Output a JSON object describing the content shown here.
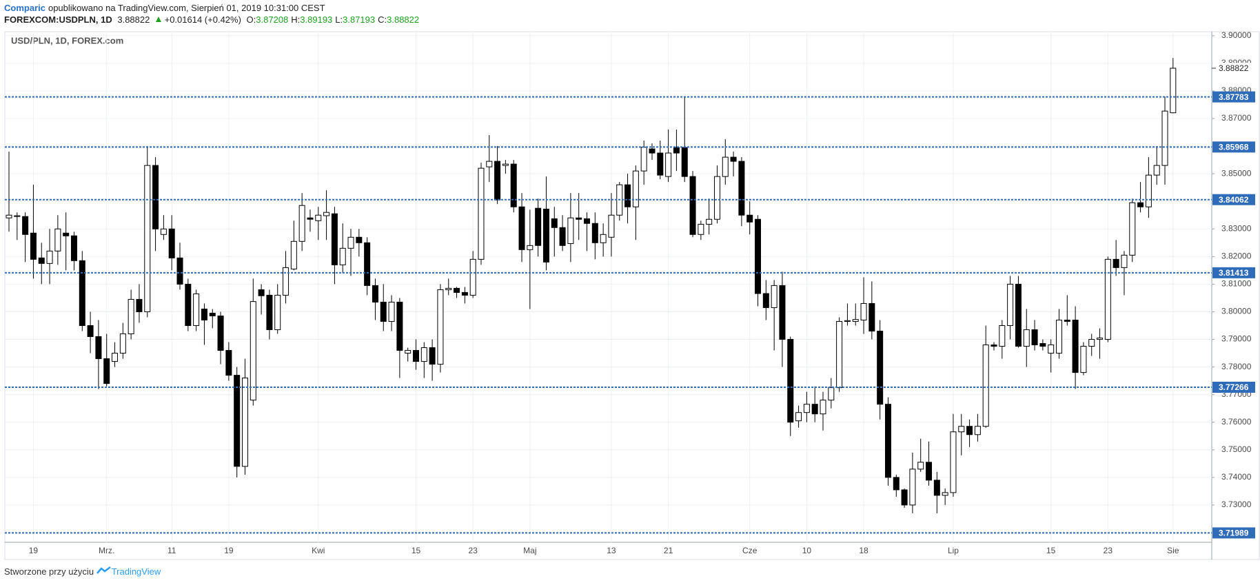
{
  "header": {
    "author": "Comparic",
    "published": "opublikowano na TradingView.com, Sierpień 01, 2019 10:31:00 CEST",
    "symbol": "FOREXCOM:USDPLN, 1D",
    "last": "3.88822",
    "change": "+0.01614 (+0.42%)",
    "ohlc": [
      {
        "label": "O:",
        "value": "3.87208"
      },
      {
        "label": "H:",
        "value": "3.89193"
      },
      {
        "label": "L:",
        "value": "3.87193"
      },
      {
        "label": "C:",
        "value": "3.88822"
      }
    ]
  },
  "footer": {
    "text": "Stworzone przy użyciu",
    "brand": "TradingView"
  },
  "chart_data": {
    "type": "candlestick",
    "title": "USD/PLN, 1D, FOREX.com",
    "up_color": "#ffffff",
    "down_color": "#000000",
    "level_color": "#2e6bb8",
    "grid": true,
    "ylim": [
      3.7175,
      3.9012
    ],
    "yticks": [
      {
        "value": 3.73,
        "label": "3.73000"
      },
      {
        "value": 3.74,
        "label": "3.74000"
      },
      {
        "value": 3.75,
        "label": "3.75000"
      },
      {
        "value": 3.76,
        "label": "3.76000"
      },
      {
        "value": 3.77,
        "label": "3.77000"
      },
      {
        "value": 3.78,
        "label": "3.78000"
      },
      {
        "value": 3.79,
        "label": "3.79000"
      },
      {
        "value": 3.8,
        "label": "3.80000"
      },
      {
        "value": 3.81,
        "label": "3.81000"
      },
      {
        "value": 3.82,
        "label": "3.82000"
      },
      {
        "value": 3.83,
        "label": "3.83000"
      },
      {
        "value": 3.84,
        "label": "3.84000"
      },
      {
        "value": 3.85,
        "label": "3.85000"
      },
      {
        "value": 3.86,
        "label": "3.86000"
      },
      {
        "value": 3.87,
        "label": "3.87000"
      },
      {
        "value": 3.88,
        "label": "3.88000"
      },
      {
        "value": 3.89,
        "label": "3.89000"
      },
      {
        "value": 3.9,
        "label": "3.90000"
      }
    ],
    "levels": [
      3.87783,
      3.85968,
      3.84062,
      3.81413,
      3.77266,
      3.71989
    ],
    "last_price": 3.88822,
    "categories": [
      null,
      null,
      null,
      "19",
      null,
      null,
      null,
      null,
      null,
      null,
      null,
      null,
      "Mrz.",
      null,
      null,
      null,
      null,
      null,
      null,
      null,
      "11",
      null,
      null,
      null,
      null,
      null,
      null,
      "19",
      null,
      null,
      null,
      null,
      null,
      null,
      null,
      null,
      null,
      null,
      "Kwi",
      null,
      null,
      null,
      null,
      null,
      null,
      null,
      null,
      null,
      null,
      null,
      "15",
      null,
      null,
      null,
      null,
      null,
      null,
      "23",
      null,
      null,
      null,
      null,
      null,
      null,
      "Maj",
      null,
      null,
      null,
      null,
      null,
      null,
      null,
      null,
      null,
      "13",
      null,
      null,
      null,
      null,
      null,
      null,
      "21",
      null,
      null,
      null,
      null,
      null,
      null,
      null,
      null,
      null,
      "Cze",
      null,
      null,
      null,
      null,
      null,
      null,
      "10",
      null,
      null,
      null,
      null,
      null,
      null,
      "18",
      null,
      null,
      null,
      null,
      null,
      null,
      null,
      null,
      null,
      null,
      "Lip",
      null,
      null,
      null,
      null,
      null,
      null,
      null,
      null,
      null,
      null,
      null,
      "15",
      null,
      null,
      null,
      null,
      null,
      null,
      "23",
      null,
      null,
      null,
      null,
      null,
      null,
      null,
      "Sie"
    ],
    "ohlc": [
      [
        3.834,
        3.858,
        3.829,
        3.835
      ],
      [
        3.8345,
        3.836,
        3.826,
        3.8348
      ],
      [
        3.8345,
        3.836,
        3.818,
        3.828
      ],
      [
        3.8285,
        3.846,
        3.812,
        3.819
      ],
      [
        3.8195,
        3.825,
        3.81,
        3.8175
      ],
      [
        3.8175,
        3.83,
        3.81,
        3.822
      ],
      [
        3.822,
        3.835,
        3.817,
        3.83
      ],
      [
        3.8285,
        3.836,
        3.815,
        3.8275
      ],
      [
        3.8275,
        3.829,
        3.815,
        3.8185
      ],
      [
        3.8185,
        3.822,
        3.793,
        3.795
      ],
      [
        3.795,
        3.8,
        3.785,
        3.791
      ],
      [
        3.791,
        3.797,
        3.772,
        3.783
      ],
      [
        3.783,
        3.792,
        3.773,
        3.774
      ],
      [
        3.782,
        3.789,
        3.78,
        3.785
      ],
      [
        3.785,
        3.796,
        3.783,
        3.792
      ],
      [
        3.792,
        3.808,
        3.79,
        3.8045
      ],
      [
        3.8045,
        3.81,
        3.796,
        3.8
      ],
      [
        3.8,
        3.86,
        3.798,
        3.853
      ],
      [
        3.853,
        3.856,
        3.822,
        3.83
      ],
      [
        3.828,
        3.835,
        3.826,
        3.83
      ],
      [
        3.83,
        3.835,
        3.815,
        3.8195
      ],
      [
        3.8195,
        3.825,
        3.808,
        3.81
      ],
      [
        3.81,
        3.812,
        3.793,
        3.795
      ],
      [
        3.795,
        3.808,
        3.793,
        3.8065
      ],
      [
        3.801,
        3.803,
        3.788,
        3.797
      ],
      [
        3.7995,
        3.801,
        3.794,
        3.7985
      ],
      [
        3.7985,
        3.8,
        3.781,
        3.786
      ],
      [
        3.786,
        3.789,
        3.775,
        3.777
      ],
      [
        3.777,
        3.78,
        3.74,
        3.744
      ],
      [
        3.744,
        3.783,
        3.741,
        3.776
      ],
      [
        3.768,
        3.812,
        3.766,
        3.8037
      ],
      [
        3.808,
        3.81,
        3.799,
        3.8058
      ],
      [
        3.806,
        3.808,
        3.79,
        3.7935
      ],
      [
        3.7935,
        3.81,
        3.792,
        3.806
      ],
      [
        3.806,
        3.822,
        3.803,
        3.816
      ],
      [
        3.8155,
        3.833,
        3.815,
        3.8255
      ],
      [
        3.8255,
        3.843,
        3.822,
        3.8385
      ],
      [
        3.834,
        3.837,
        3.829,
        3.8335
      ],
      [
        3.833,
        3.838,
        3.826,
        3.835
      ],
      [
        3.8348,
        3.844,
        3.826,
        3.836
      ],
      [
        3.8355,
        3.838,
        3.81,
        3.817
      ],
      [
        3.817,
        3.832,
        3.814,
        3.823
      ],
      [
        3.823,
        3.83,
        3.813,
        3.827
      ],
      [
        3.827,
        3.83,
        3.82,
        3.825
      ],
      [
        3.825,
        3.827,
        3.806,
        3.8095
      ],
      [
        3.8095,
        3.812,
        3.797,
        3.8035
      ],
      [
        3.8035,
        3.81,
        3.793,
        3.7965
      ],
      [
        3.7965,
        3.806,
        3.793,
        3.8035
      ],
      [
        3.8035,
        3.805,
        3.776,
        3.786
      ],
      [
        3.785,
        3.787,
        3.782,
        3.786
      ],
      [
        3.786,
        3.79,
        3.779,
        3.782
      ],
      [
        3.782,
        3.789,
        3.776,
        3.787
      ],
      [
        3.787,
        3.79,
        3.775,
        3.781
      ],
      [
        3.781,
        3.81,
        3.778,
        3.808
      ],
      [
        3.808,
        3.812,
        3.806,
        3.8085
      ],
      [
        3.8085,
        3.809,
        3.805,
        3.807
      ],
      [
        3.807,
        3.809,
        3.803,
        3.806
      ],
      [
        3.806,
        3.822,
        3.805,
        3.819
      ],
      [
        3.819,
        3.854,
        3.817,
        3.852
      ],
      [
        3.8525,
        3.864,
        3.847,
        3.8545
      ],
      [
        3.8545,
        3.86,
        3.839,
        3.8405
      ],
      [
        3.853,
        3.855,
        3.85,
        3.8535
      ],
      [
        3.8535,
        3.855,
        3.836,
        3.838
      ],
      [
        3.838,
        3.843,
        3.818,
        3.8225
      ],
      [
        3.8225,
        3.837,
        3.801,
        3.824
      ],
      [
        3.8375,
        3.841,
        3.82,
        3.824
      ],
      [
        3.8372,
        3.849,
        3.815,
        3.818
      ],
      [
        3.8337,
        3.838,
        3.82,
        3.8305
      ],
      [
        3.8305,
        3.835,
        3.822,
        3.824
      ],
      [
        3.8247,
        3.843,
        3.818,
        3.834
      ],
      [
        3.834,
        3.843,
        3.826,
        3.8335
      ],
      [
        3.8337,
        3.836,
        3.822,
        3.832
      ],
      [
        3.832,
        3.836,
        3.819,
        3.825
      ],
      [
        3.825,
        3.832,
        3.82,
        3.828
      ],
      [
        3.827,
        3.843,
        3.82,
        3.835
      ],
      [
        3.835,
        3.847,
        3.833,
        3.846
      ],
      [
        3.846,
        3.85,
        3.832,
        3.838
      ],
      [
        3.838,
        3.853,
        3.826,
        3.851
      ],
      [
        3.851,
        3.862,
        3.846,
        3.8596
      ],
      [
        3.859,
        3.861,
        3.855,
        3.8575
      ],
      [
        3.8575,
        3.862,
        3.848,
        3.8495
      ],
      [
        3.849,
        3.866,
        3.847,
        3.8575
      ],
      [
        3.8595,
        3.866,
        3.851,
        3.8575
      ],
      [
        3.8595,
        3.8778,
        3.847,
        3.849
      ],
      [
        3.849,
        3.851,
        3.827,
        3.828
      ],
      [
        3.828,
        3.833,
        3.826,
        3.8317
      ],
      [
        3.8317,
        3.841,
        3.828,
        3.8335
      ],
      [
        3.8335,
        3.853,
        3.832,
        3.849
      ],
      [
        3.849,
        3.8625,
        3.846,
        3.856
      ],
      [
        3.856,
        3.858,
        3.849,
        3.8545
      ],
      [
        3.8545,
        3.856,
        3.831,
        3.835
      ],
      [
        3.835,
        3.84,
        3.828,
        3.8325
      ],
      [
        3.8335,
        3.835,
        3.802,
        3.8066
      ],
      [
        3.8066,
        3.8115,
        3.797,
        3.8015
      ],
      [
        3.8015,
        3.8115,
        3.786,
        3.8095
      ],
      [
        3.8095,
        3.8145,
        3.78,
        3.79
      ],
      [
        3.79,
        3.791,
        3.755,
        3.76
      ],
      [
        3.7605,
        3.766,
        3.758,
        3.7635
      ],
      [
        3.7635,
        3.771,
        3.76,
        3.7665
      ],
      [
        3.7665,
        3.773,
        3.76,
        3.763
      ],
      [
        3.763,
        3.771,
        3.757,
        3.768
      ],
      [
        3.768,
        3.776,
        3.765,
        3.7725
      ],
      [
        3.7725,
        3.798,
        3.771,
        3.7965
      ],
      [
        3.7965,
        3.803,
        3.795,
        3.7968
      ],
      [
        3.7965,
        3.803,
        3.795,
        3.7972
      ],
      [
        3.797,
        3.8125,
        3.792,
        3.803
      ],
      [
        3.803,
        3.811,
        3.79,
        3.793
      ],
      [
        3.793,
        3.797,
        3.761,
        3.7665
      ],
      [
        3.7665,
        3.769,
        3.737,
        3.74
      ],
      [
        3.74,
        3.741,
        3.733,
        3.7355
      ],
      [
        3.7355,
        3.736,
        3.729,
        3.73
      ],
      [
        3.73,
        3.749,
        3.727,
        3.743
      ],
      [
        3.743,
        3.754,
        3.742,
        3.7455
      ],
      [
        3.7455,
        3.753,
        3.737,
        3.739
      ],
      [
        3.739,
        3.742,
        3.727,
        3.7335
      ],
      [
        3.7335,
        3.736,
        3.73,
        3.7345
      ],
      [
        3.7345,
        3.763,
        3.733,
        3.7565
      ],
      [
        3.7565,
        3.763,
        3.748,
        3.7585
      ],
      [
        3.7585,
        3.761,
        3.751,
        3.7555
      ],
      [
        3.7555,
        3.763,
        3.753,
        3.7585
      ],
      [
        3.7585,
        3.795,
        3.758,
        3.788
      ],
      [
        3.788,
        3.789,
        3.786,
        3.7875
      ],
      [
        3.7875,
        3.797,
        3.783,
        3.795
      ],
      [
        3.795,
        3.813,
        3.79,
        3.81
      ],
      [
        3.81,
        3.813,
        3.787,
        3.7875
      ],
      [
        3.7875,
        3.801,
        3.78,
        3.7935
      ],
      [
        3.7935,
        3.797,
        3.786,
        3.788
      ],
      [
        3.7885,
        3.79,
        3.786,
        3.7875
      ],
      [
        3.785,
        3.79,
        3.778,
        3.788
      ],
      [
        3.785,
        3.801,
        3.783,
        3.797
      ],
      [
        3.797,
        3.806,
        3.795,
        3.7965
      ],
      [
        3.797,
        3.802,
        3.772,
        3.778
      ],
      [
        3.778,
        3.789,
        3.777,
        3.7875
      ],
      [
        3.7875,
        3.792,
        3.784,
        3.79
      ],
      [
        3.79,
        3.794,
        3.783,
        3.7905
      ],
      [
        3.79,
        3.82,
        3.789,
        3.819
      ],
      [
        3.819,
        3.826,
        3.813,
        3.816
      ],
      [
        3.816,
        3.822,
        3.806,
        3.8205
      ],
      [
        3.8205,
        3.841,
        3.818,
        3.8395
      ],
      [
        3.8395,
        3.847,
        3.836,
        3.838
      ],
      [
        3.838,
        3.856,
        3.834,
        3.8495
      ],
      [
        3.8495,
        3.86,
        3.846,
        3.853
      ],
      [
        3.853,
        3.878,
        3.846,
        3.8727
      ],
      [
        3.87208,
        3.89193,
        3.87193,
        3.88822
      ]
    ]
  }
}
